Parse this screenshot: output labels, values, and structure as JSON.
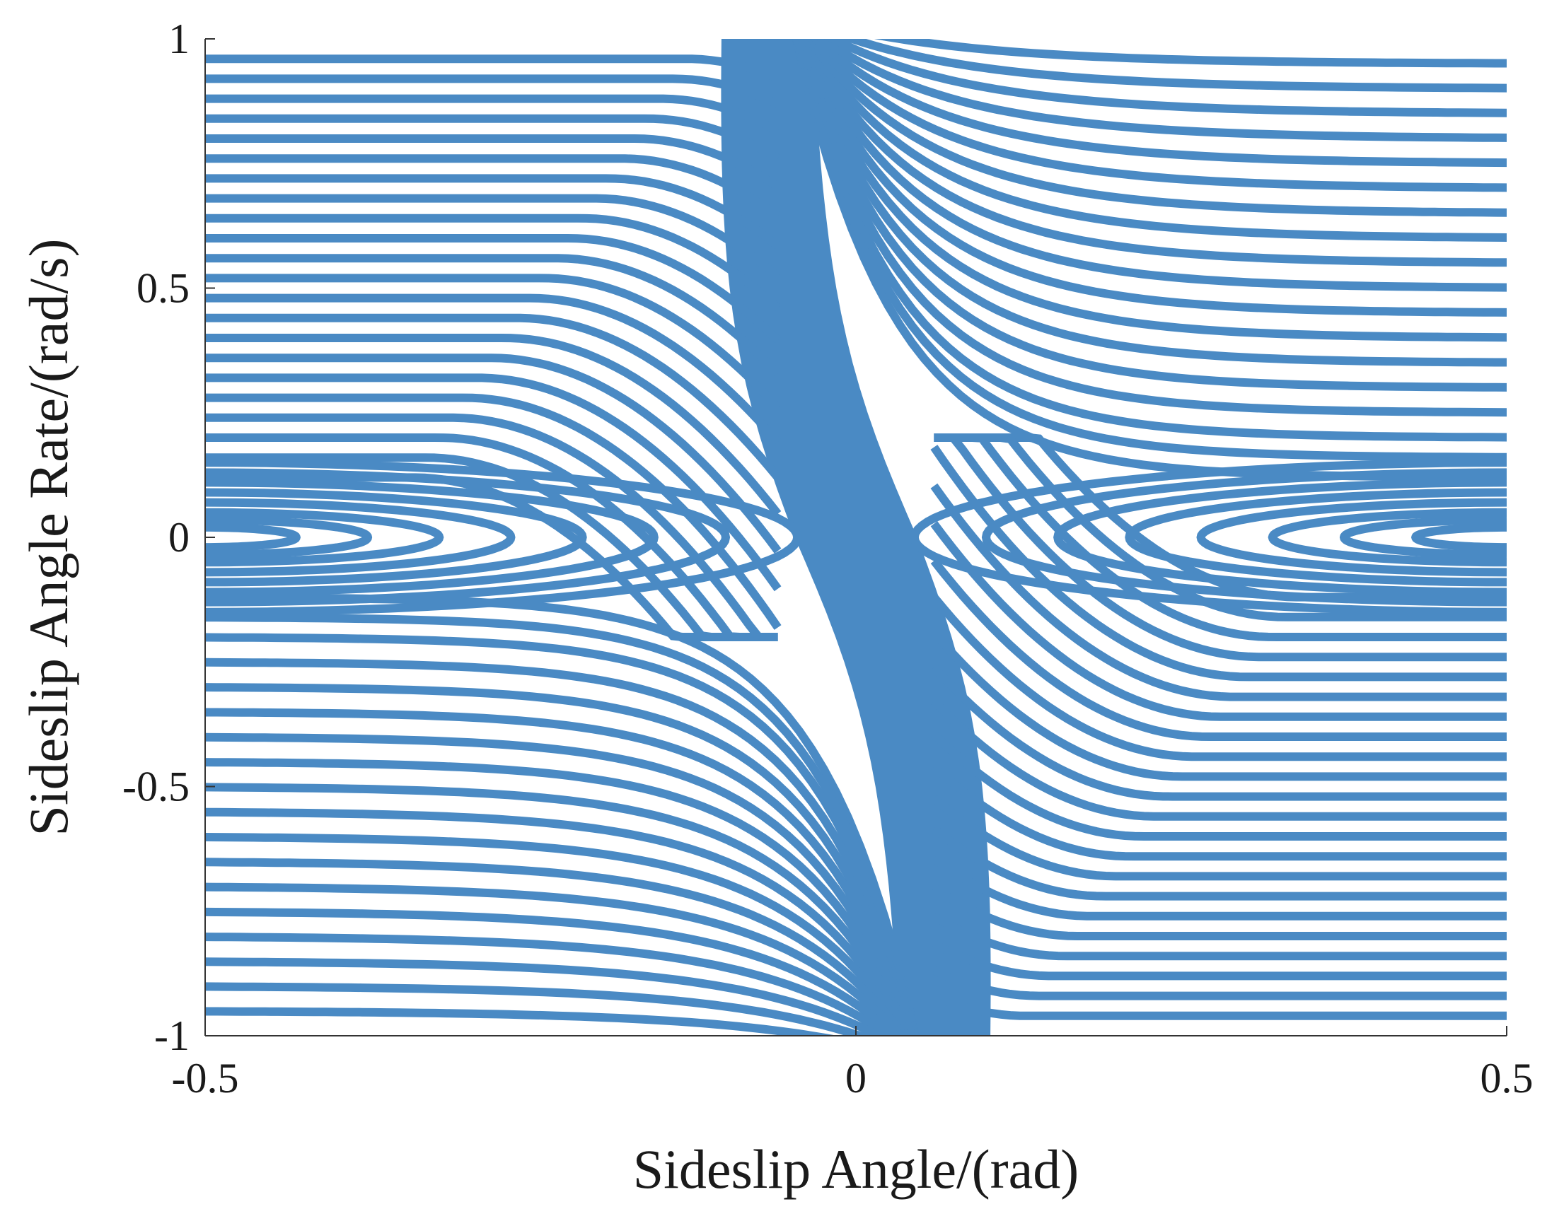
{
  "chart_data": {
    "type": "line",
    "description_kind": "phase-plane portrait",
    "xlabel": "Sideslip Angle/(rad)",
    "ylabel": "Sideslip Angle Rate/(rad/s)",
    "xlim": [
      -0.5,
      0.5
    ],
    "ylim": [
      -1,
      1
    ],
    "xticks": [
      -0.5,
      0,
      0.5
    ],
    "xtick_labels": [
      "-0.5",
      "0",
      "0.5"
    ],
    "yticks": [
      -1,
      -0.5,
      0,
      0.5,
      1
    ],
    "ytick_labels": [
      "-1",
      "-0.5",
      "0",
      "0.5",
      "1"
    ],
    "grid": false,
    "legend": "none",
    "line_color": "#4a8ac4",
    "axis_color": "#333333",
    "saddle_points": [
      [
        -0.065,
        0
      ],
      [
        0.065,
        0
      ]
    ],
    "left_centers": [
      [
        -0.5,
        0
      ]
    ],
    "right_centers": [
      [
        0.5,
        0
      ]
    ],
    "series": [
      {
        "kind": "upper-left",
        "levels": [
          0.12,
          0.16,
          0.2,
          0.24,
          0.28,
          0.32,
          0.36,
          0.4,
          0.44,
          0.48,
          0.52,
          0.56,
          0.6,
          0.64,
          0.68,
          0.72,
          0.76,
          0.8,
          0.84,
          0.88,
          0.92,
          0.96
        ]
      },
      {
        "kind": "upper-right",
        "levels": [
          0.12,
          0.16,
          0.2,
          0.25,
          0.3,
          0.35,
          0.4,
          0.45,
          0.5,
          0.55,
          0.6,
          0.65,
          0.7,
          0.75,
          0.8,
          0.85,
          0.9,
          0.95
        ]
      },
      {
        "kind": "lower-left",
        "levels": [
          -0.12,
          -0.16,
          -0.2,
          -0.25,
          -0.3,
          -0.35,
          -0.4,
          -0.45,
          -0.5,
          -0.55,
          -0.6,
          -0.65,
          -0.7,
          -0.75,
          -0.8,
          -0.85,
          -0.9,
          -0.95
        ]
      },
      {
        "kind": "lower-right",
        "levels": [
          -0.12,
          -0.16,
          -0.2,
          -0.24,
          -0.28,
          -0.32,
          -0.36,
          -0.4,
          -0.44,
          -0.48,
          -0.52,
          -0.56,
          -0.6,
          -0.64,
          -0.68,
          -0.72,
          -0.76,
          -0.8,
          -0.84,
          -0.88,
          -0.92,
          -0.96
        ]
      },
      {
        "kind": "left-loop",
        "levels": [
          0.02,
          0.035,
          0.05,
          0.07,
          0.09,
          0.11,
          0.13,
          0.15
        ]
      },
      {
        "kind": "right-loop",
        "levels": [
          0.02,
          0.035,
          0.05,
          0.07,
          0.09,
          0.11,
          0.13,
          0.15
        ]
      }
    ]
  }
}
